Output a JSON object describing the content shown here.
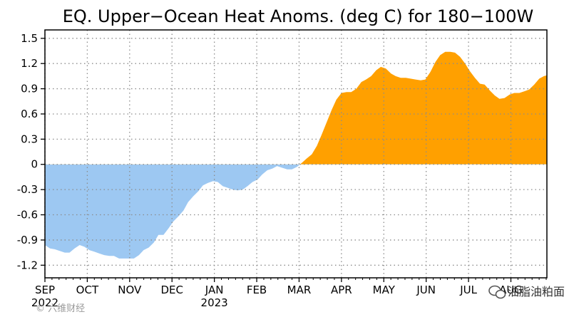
{
  "chart_data": {
    "type": "area",
    "title": "EQ. Upper−Ocean Heat Anoms. (deg C) for 180−100W",
    "ylim": [
      -1.35,
      1.6
    ],
    "yticks": [
      1.5,
      1.2,
      0.9,
      0.6,
      0.3,
      0,
      -0.3,
      -0.6,
      -0.9,
      -1.2
    ],
    "ytick_labels": [
      "1.5",
      "1.2",
      "0.9",
      "0.6",
      "0.3",
      "0",
      "-0.3",
      "-0.6",
      "-0.9",
      "-1.2"
    ],
    "x_unit": "months since 2022-09-01",
    "xlim": [
      0,
      11.85
    ],
    "month_labels": [
      "SEP",
      "OCT",
      "NOV",
      "DEC",
      "JAN",
      "FEB",
      "MAR",
      "APR",
      "MAY",
      "JUN",
      "JUL",
      "AUG"
    ],
    "year_labels": [
      {
        "month_index": 0,
        "text": "2022"
      },
      {
        "month_index": 4,
        "text": "2023"
      }
    ],
    "colors": {
      "positive": "#ffa000",
      "negative": "#9dc8f2",
      "grid": "#8c8c8c"
    },
    "x": [
      0,
      0.12,
      0.23,
      0.35,
      0.47,
      0.58,
      0.7,
      0.82,
      0.93,
      1.05,
      1.17,
      1.28,
      1.4,
      1.52,
      1.63,
      1.75,
      1.87,
      1.98,
      2.1,
      2.22,
      2.33,
      2.45,
      2.57,
      2.68,
      2.8,
      2.92,
      3.03,
      3.15,
      3.27,
      3.38,
      3.5,
      3.62,
      3.73,
      3.85,
      3.97,
      4.08,
      4.2,
      4.32,
      4.43,
      4.55,
      4.67,
      4.78,
      4.9,
      5.02,
      5.13,
      5.25,
      5.37,
      5.48,
      5.6,
      5.72,
      5.83,
      5.95,
      6.07,
      6.18,
      6.3,
      6.42,
      6.53,
      6.65,
      6.77,
      6.88,
      7.0,
      7.12,
      7.23,
      7.35,
      7.47,
      7.58,
      7.7,
      7.82,
      7.93,
      8.05,
      8.17,
      8.28,
      8.4,
      8.52,
      8.63,
      8.75,
      8.87,
      8.98,
      9.1,
      9.22,
      9.33,
      9.45,
      9.57,
      9.68,
      9.8,
      9.92,
      10.03,
      10.15,
      10.27,
      10.38,
      10.5,
      10.62,
      10.73,
      10.85,
      10.97,
      11.08,
      11.2,
      11.32,
      11.43,
      11.55,
      11.67,
      11.78,
      11.85
    ],
    "values": [
      -0.96,
      -1.0,
      -1.01,
      -1.03,
      -1.05,
      -1.05,
      -1.0,
      -0.96,
      -0.98,
      -1.02,
      -1.04,
      -1.06,
      -1.08,
      -1.09,
      -1.09,
      -1.12,
      -1.12,
      -1.12,
      -1.12,
      -1.08,
      -1.02,
      -0.99,
      -0.93,
      -0.84,
      -0.84,
      -0.76,
      -0.68,
      -0.62,
      -0.55,
      -0.45,
      -0.38,
      -0.32,
      -0.25,
      -0.22,
      -0.2,
      -0.21,
      -0.26,
      -0.28,
      -0.3,
      -0.31,
      -0.3,
      -0.26,
      -0.21,
      -0.18,
      -0.12,
      -0.07,
      -0.05,
      -0.02,
      -0.04,
      -0.06,
      -0.06,
      -0.03,
      0.02,
      0.07,
      0.12,
      0.22,
      0.35,
      0.5,
      0.65,
      0.77,
      0.85,
      0.86,
      0.86,
      0.9,
      0.98,
      1.01,
      1.05,
      1.12,
      1.16,
      1.14,
      1.08,
      1.05,
      1.03,
      1.03,
      1.02,
      1.01,
      1.0,
      1.01,
      1.1,
      1.22,
      1.3,
      1.34,
      1.34,
      1.33,
      1.28,
      1.2,
      1.11,
      1.03,
      0.96,
      0.95,
      0.88,
      0.82,
      0.78,
      0.79,
      0.83,
      0.85,
      0.85,
      0.87,
      0.89,
      0.95,
      1.02,
      1.05,
      1.06
    ]
  },
  "watermark": {
    "left_text": "© 六维财经",
    "right_text": "油脂油粕面"
  }
}
